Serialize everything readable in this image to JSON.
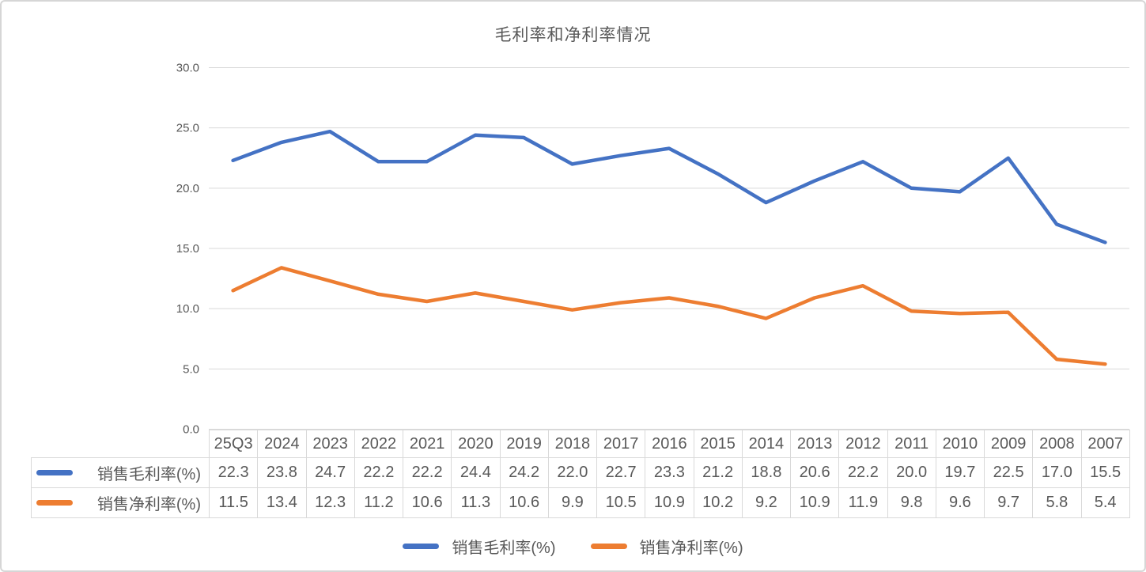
{
  "chart_data": {
    "type": "line",
    "title": "毛利率和净利率情况",
    "categories": [
      "25Q3",
      "2024",
      "2023",
      "2022",
      "2021",
      "2020",
      "2019",
      "2018",
      "2017",
      "2016",
      "2015",
      "2014",
      "2013",
      "2012",
      "2011",
      "2010",
      "2009",
      "2008",
      "2007"
    ],
    "series": [
      {
        "name": "销售毛利率(%)",
        "color": "#4472C4",
        "values": [
          22.3,
          23.8,
          24.7,
          22.2,
          22.2,
          24.4,
          24.2,
          22.0,
          22.7,
          23.3,
          21.2,
          18.8,
          20.6,
          22.2,
          20.0,
          19.7,
          22.5,
          17.0,
          15.5
        ]
      },
      {
        "name": "销售净利率(%)",
        "color": "#ED7D31",
        "values": [
          11.5,
          13.4,
          12.3,
          11.2,
          10.6,
          11.3,
          10.6,
          9.9,
          10.5,
          10.9,
          10.2,
          9.2,
          10.9,
          11.9,
          9.8,
          9.6,
          9.7,
          5.8,
          5.4
        ]
      }
    ],
    "ylim": [
      0,
      30
    ],
    "yticks": [
      0,
      5,
      10,
      15,
      20,
      25,
      30
    ],
    "ytick_labels": [
      "0.0",
      "5.0",
      "10.0",
      "15.0",
      "20.0",
      "25.0",
      "30.0"
    ],
    "xlabel": "",
    "ylabel": "",
    "grid": true,
    "legend_position": "bottom",
    "has_data_table": true
  },
  "colors": {
    "gridline": "#d9d9d9",
    "axis_text": "#595959",
    "table_border": "#d9d9d9",
    "table_text": "#595959",
    "title_text": "#595959"
  }
}
